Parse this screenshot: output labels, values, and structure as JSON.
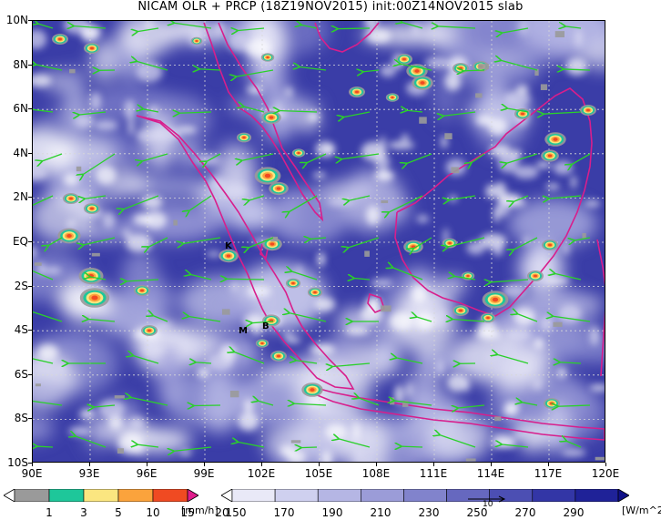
{
  "title": "NICAM OLR + PRCP (18Z19NOV2015) init:00Z14NOV2015 slab",
  "axes": {
    "y_labels": [
      "10N",
      "8N",
      "6N",
      "4N",
      "2N",
      "EQ",
      "2S",
      "4S",
      "6S",
      "8S",
      "10S"
    ],
    "x_labels": [
      "90E",
      "93E",
      "96E",
      "99E",
      "102E",
      "105E",
      "108E",
      "111E",
      "114E",
      "117E",
      "120E"
    ]
  },
  "markers": [
    {
      "label": "K"
    },
    {
      "label": "B"
    },
    {
      "label": "M"
    }
  ],
  "precip_colorbar": {
    "labels": [
      "1",
      "3",
      "5",
      "10",
      "15",
      "20"
    ],
    "unit": "[mm/h]",
    "colors": [
      "#ffffff",
      "#9a9a9a",
      "#1ec79a",
      "#fbe680",
      "#fba33c",
      "#f04a22",
      "#e01c8c"
    ]
  },
  "olr_colorbar": {
    "labels": [
      "150",
      "170",
      "190",
      "210",
      "230",
      "250",
      "270",
      "290"
    ],
    "unit": "[W/m^2]",
    "colors": [
      "#ffffff",
      "#e9e9f7",
      "#cfd0ef",
      "#b5b6e4",
      "#9b9cd8",
      "#8183cc",
      "#6668bf",
      "#4c4fb3",
      "#3336a6",
      "#1f2298",
      "#0f1088"
    ]
  },
  "wind_vector_label": "10",
  "colors": {
    "coastline": "#d81e8c",
    "wind_vectors": "#2ad02a",
    "grid": "#d8d8d8"
  }
}
